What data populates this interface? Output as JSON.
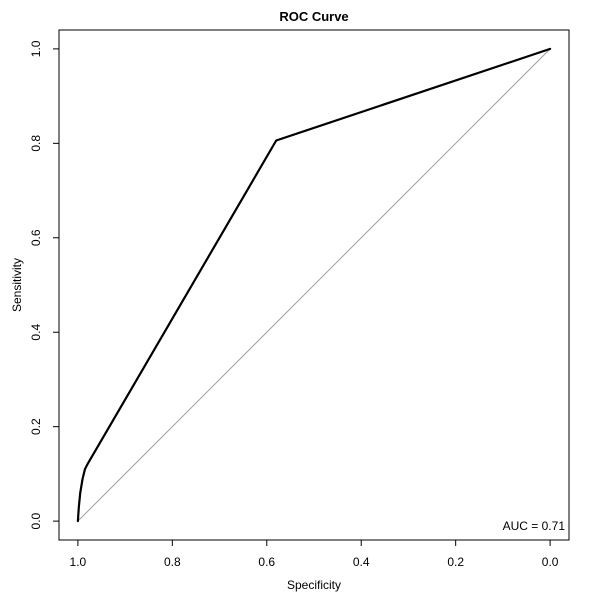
{
  "chart_data": {
    "type": "line",
    "title": "ROC Curve",
    "xlabel": "Specificity",
    "ylabel": "Sensitivity",
    "x_reversed": true,
    "xlim": [
      1.04,
      -0.04
    ],
    "ylim": [
      -0.04,
      1.04
    ],
    "x_ticks": [
      1.0,
      0.8,
      0.6,
      0.4,
      0.2,
      0.0
    ],
    "x_tick_labels": [
      "1.0",
      "0.8",
      "0.6",
      "0.4",
      "0.2",
      "0.0"
    ],
    "y_ticks": [
      0.0,
      0.2,
      0.4,
      0.6,
      0.8,
      1.0
    ],
    "y_tick_labels": [
      "0.0",
      "0.2",
      "0.4",
      "0.6",
      "0.8",
      "1.0"
    ],
    "grid": false,
    "legend": "none",
    "series": [
      {
        "specificity": [
          1.0,
          0.998,
          0.995,
          0.99,
          0.985,
          0.98,
          0.58,
          0.0
        ],
        "sensitivity": [
          0.0,
          0.03,
          0.06,
          0.09,
          0.11,
          0.12,
          0.806,
          1.0
        ],
        "color": "#000000"
      }
    ],
    "reference_line": {
      "from": [
        1.0,
        0.0
      ],
      "to": [
        0.0,
        1.0
      ],
      "color": "#a0a0a0"
    },
    "annotation": "AUC = 0.71"
  }
}
